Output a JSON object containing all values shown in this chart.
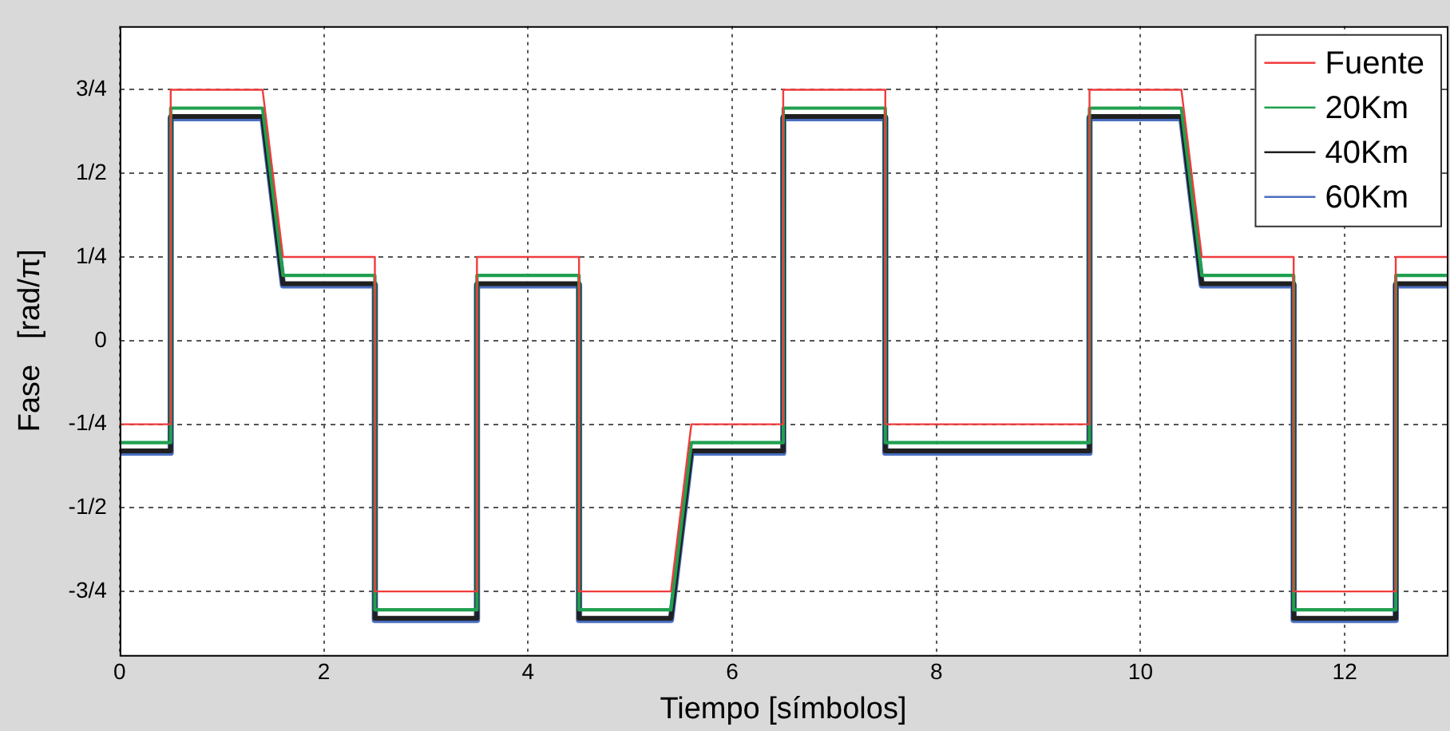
{
  "chart_data": {
    "type": "line",
    "xlabel": "Tiempo [símbolos]",
    "ylabel": "Fase   [rad/π]",
    "x": [
      0,
      0.5,
      0.5,
      1.4,
      1.5,
      1.6,
      2.5,
      2.5,
      3.5,
      3.5,
      4.5,
      4.5,
      5.4,
      5.5,
      5.6,
      6.5,
      6.5,
      7.5,
      7.5,
      9.5,
      9.5,
      10.4,
      10.5,
      10.6,
      11.5,
      11.5,
      12.5,
      12.5,
      13
    ],
    "series": [
      {
        "name": "Fuente",
        "color": "#f03c3c",
        "values": [
          -0.25,
          -0.25,
          0.75,
          0.75,
          0.5,
          0.25,
          0.25,
          -0.75,
          -0.75,
          0.25,
          0.25,
          -0.75,
          -0.75,
          -0.5,
          -0.25,
          -0.25,
          0.75,
          0.75,
          -0.25,
          -0.25,
          0.75,
          0.75,
          0.5,
          0.25,
          0.25,
          -0.75,
          -0.75,
          0.25,
          0.25
        ]
      },
      {
        "name": "20Km",
        "color": "#20a050",
        "values": [
          -0.305,
          -0.305,
          0.695,
          0.695,
          0.445,
          0.195,
          0.195,
          -0.805,
          -0.805,
          0.195,
          0.195,
          -0.805,
          -0.805,
          -0.555,
          -0.305,
          -0.305,
          0.695,
          0.695,
          -0.305,
          -0.305,
          0.695,
          0.695,
          0.445,
          0.195,
          0.195,
          -0.805,
          -0.805,
          0.195,
          0.195
        ]
      },
      {
        "name": "40Km",
        "color": "#202020",
        "values": [
          -0.33,
          -0.33,
          0.67,
          0.67,
          0.42,
          0.17,
          0.17,
          -0.83,
          -0.83,
          0.17,
          0.17,
          -0.83,
          -0.83,
          -0.58,
          -0.33,
          -0.33,
          0.67,
          0.67,
          -0.33,
          -0.33,
          0.67,
          0.67,
          0.42,
          0.17,
          0.17,
          -0.83,
          -0.83,
          0.17,
          0.17
        ]
      },
      {
        "name": "60Km",
        "color": "#4a6ec0",
        "values": [
          -0.335,
          -0.335,
          0.665,
          0.665,
          0.415,
          0.165,
          0.165,
          -0.835,
          -0.835,
          0.165,
          0.165,
          -0.835,
          -0.835,
          -0.585,
          -0.335,
          -0.335,
          0.665,
          0.665,
          -0.335,
          -0.335,
          0.665,
          0.665,
          0.415,
          0.165,
          0.165,
          -0.835,
          -0.835,
          0.165,
          0.165
        ]
      }
    ],
    "xlim": [
      0,
      13
    ],
    "xticks": [
      0,
      2,
      4,
      6,
      8,
      10,
      12
    ],
    "ylim": [
      -0.94,
      0.94
    ],
    "yticks": [
      {
        "value": -0.75,
        "label": "-3/4"
      },
      {
        "value": -0.5,
        "label": "-1/2"
      },
      {
        "value": -0.25,
        "label": "-1/4"
      },
      0,
      {
        "value": 0.25,
        "label": "1/4"
      },
      {
        "value": 0.5,
        "label": "1/2"
      },
      {
        "value": 0.75,
        "label": "3/4"
      }
    ],
    "grid": true,
    "legend": "top right",
    "marker": "none",
    "line_style": "solid"
  }
}
